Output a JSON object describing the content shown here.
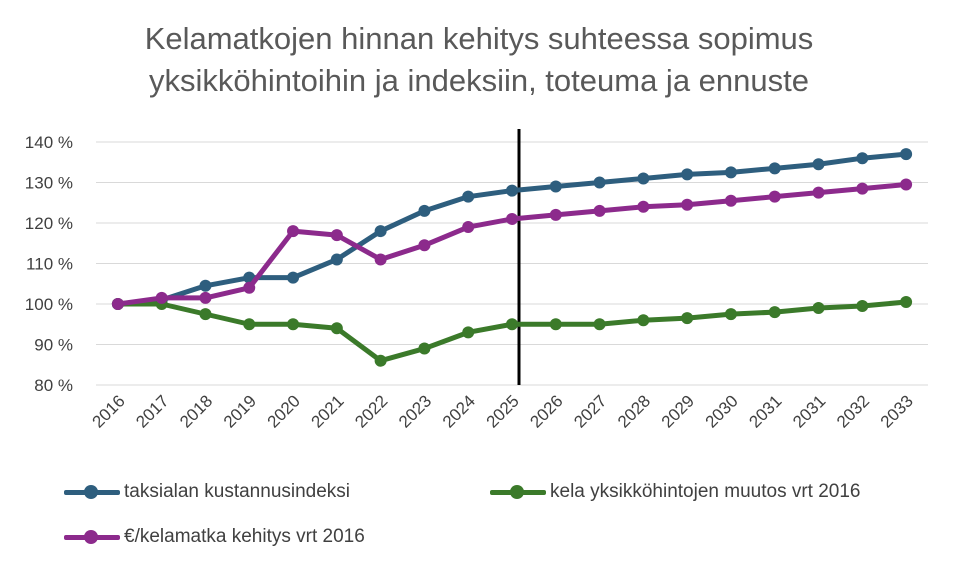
{
  "chart_data": {
    "type": "line",
    "title_lines": [
      "Kelamatkojen hinnan kehitys suhteessa sopimus",
      "yksikköhintoihin ja indeksiin, toteuma ja ennuste"
    ],
    "xlabel": "",
    "ylabel": "",
    "categories": [
      "2016",
      "2017",
      "2018",
      "2019",
      "2020",
      "2021",
      "2022",
      "2023",
      "2024",
      "2025",
      "2026",
      "2027",
      "2028",
      "2029",
      "2030",
      "2031",
      "2031",
      "2032",
      "2033"
    ],
    "yticks": [
      "80 %",
      "90 %",
      "100 %",
      "110 %",
      "120 %",
      "130 %",
      "140 %"
    ],
    "ylim": [
      80,
      140
    ],
    "grid": true,
    "vertical_marker_category_index": 9,
    "legend_position": "bottom",
    "series": [
      {
        "name": "taksialan kustannusindeksi",
        "color": "#2e5e7e",
        "values": [
          100,
          101,
          104.5,
          106.5,
          106.5,
          111,
          118,
          123,
          126.5,
          128,
          129,
          130,
          131,
          132,
          132.5,
          133.5,
          134.5,
          136,
          137
        ]
      },
      {
        "name": "kela yksikköhintojen muutos vrt 2016",
        "color": "#3b7a2a",
        "values": [
          100,
          100,
          97.5,
          95,
          95,
          94,
          86,
          89,
          93,
          95,
          95,
          95,
          96,
          96.5,
          97.5,
          98,
          99,
          99.5,
          100.5
        ]
      },
      {
        "name": "€/kelamatka kehitys vrt 2016",
        "color": "#8c2a8c",
        "values": [
          100,
          101.5,
          101.5,
          104,
          118,
          117,
          111,
          114.5,
          119,
          121,
          122,
          123,
          124,
          124.5,
          125.5,
          126.5,
          127.5,
          128.5,
          129.5
        ]
      }
    ]
  }
}
